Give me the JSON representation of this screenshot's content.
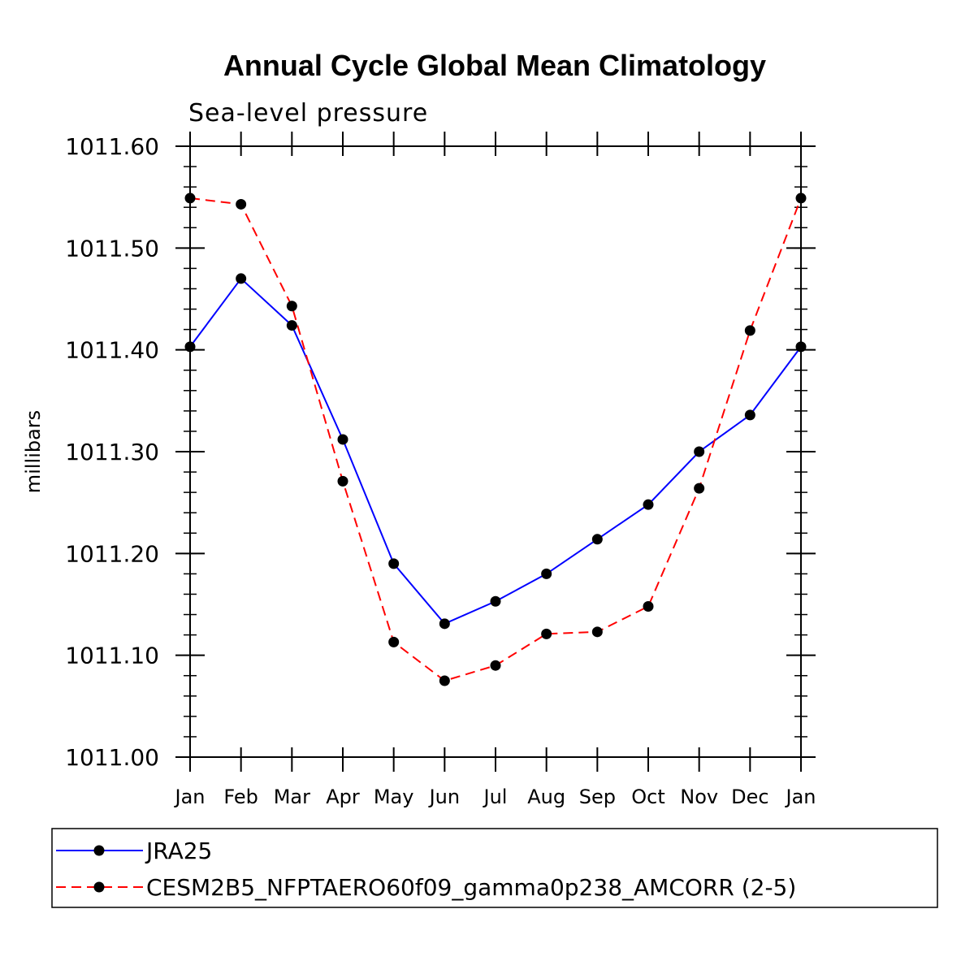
{
  "chart_data": {
    "type": "line",
    "title": "Annual Cycle Global Mean Climatology",
    "subtitle": "Sea-level pressure",
    "xlabel": "",
    "ylabel": "millibars",
    "categories": [
      "Jan",
      "Feb",
      "Mar",
      "Apr",
      "May",
      "Jun",
      "Jul",
      "Aug",
      "Sep",
      "Oct",
      "Nov",
      "Dec",
      "Jan"
    ],
    "ylim": [
      1011.0,
      1011.6
    ],
    "yticks": [
      "1011.00",
      "1011.10",
      "1011.20",
      "1011.30",
      "1011.40",
      "1011.50",
      "1011.60"
    ],
    "ytick_values": [
      1011.0,
      1011.1,
      1011.2,
      1011.3,
      1011.4,
      1011.5,
      1011.6
    ],
    "series": [
      {
        "name": "JRA25",
        "color": "#0000ff",
        "dash": "solid",
        "values": [
          1011.403,
          1011.47,
          1011.424,
          1011.312,
          1011.19,
          1011.131,
          1011.153,
          1011.18,
          1011.214,
          1011.248,
          1011.3,
          1011.336,
          1011.403
        ]
      },
      {
        "name": "CESM2B5_NFPTAERO60f09_gamma0p238_AMCORR (2-5)",
        "color": "#ff0000",
        "dash": "dashed",
        "values": [
          1011.549,
          1011.543,
          1011.443,
          1011.271,
          1011.113,
          1011.075,
          1011.09,
          1011.121,
          1011.123,
          1011.148,
          1011.264,
          1011.419,
          1011.549
        ]
      }
    ],
    "legend_position": "bottom"
  }
}
